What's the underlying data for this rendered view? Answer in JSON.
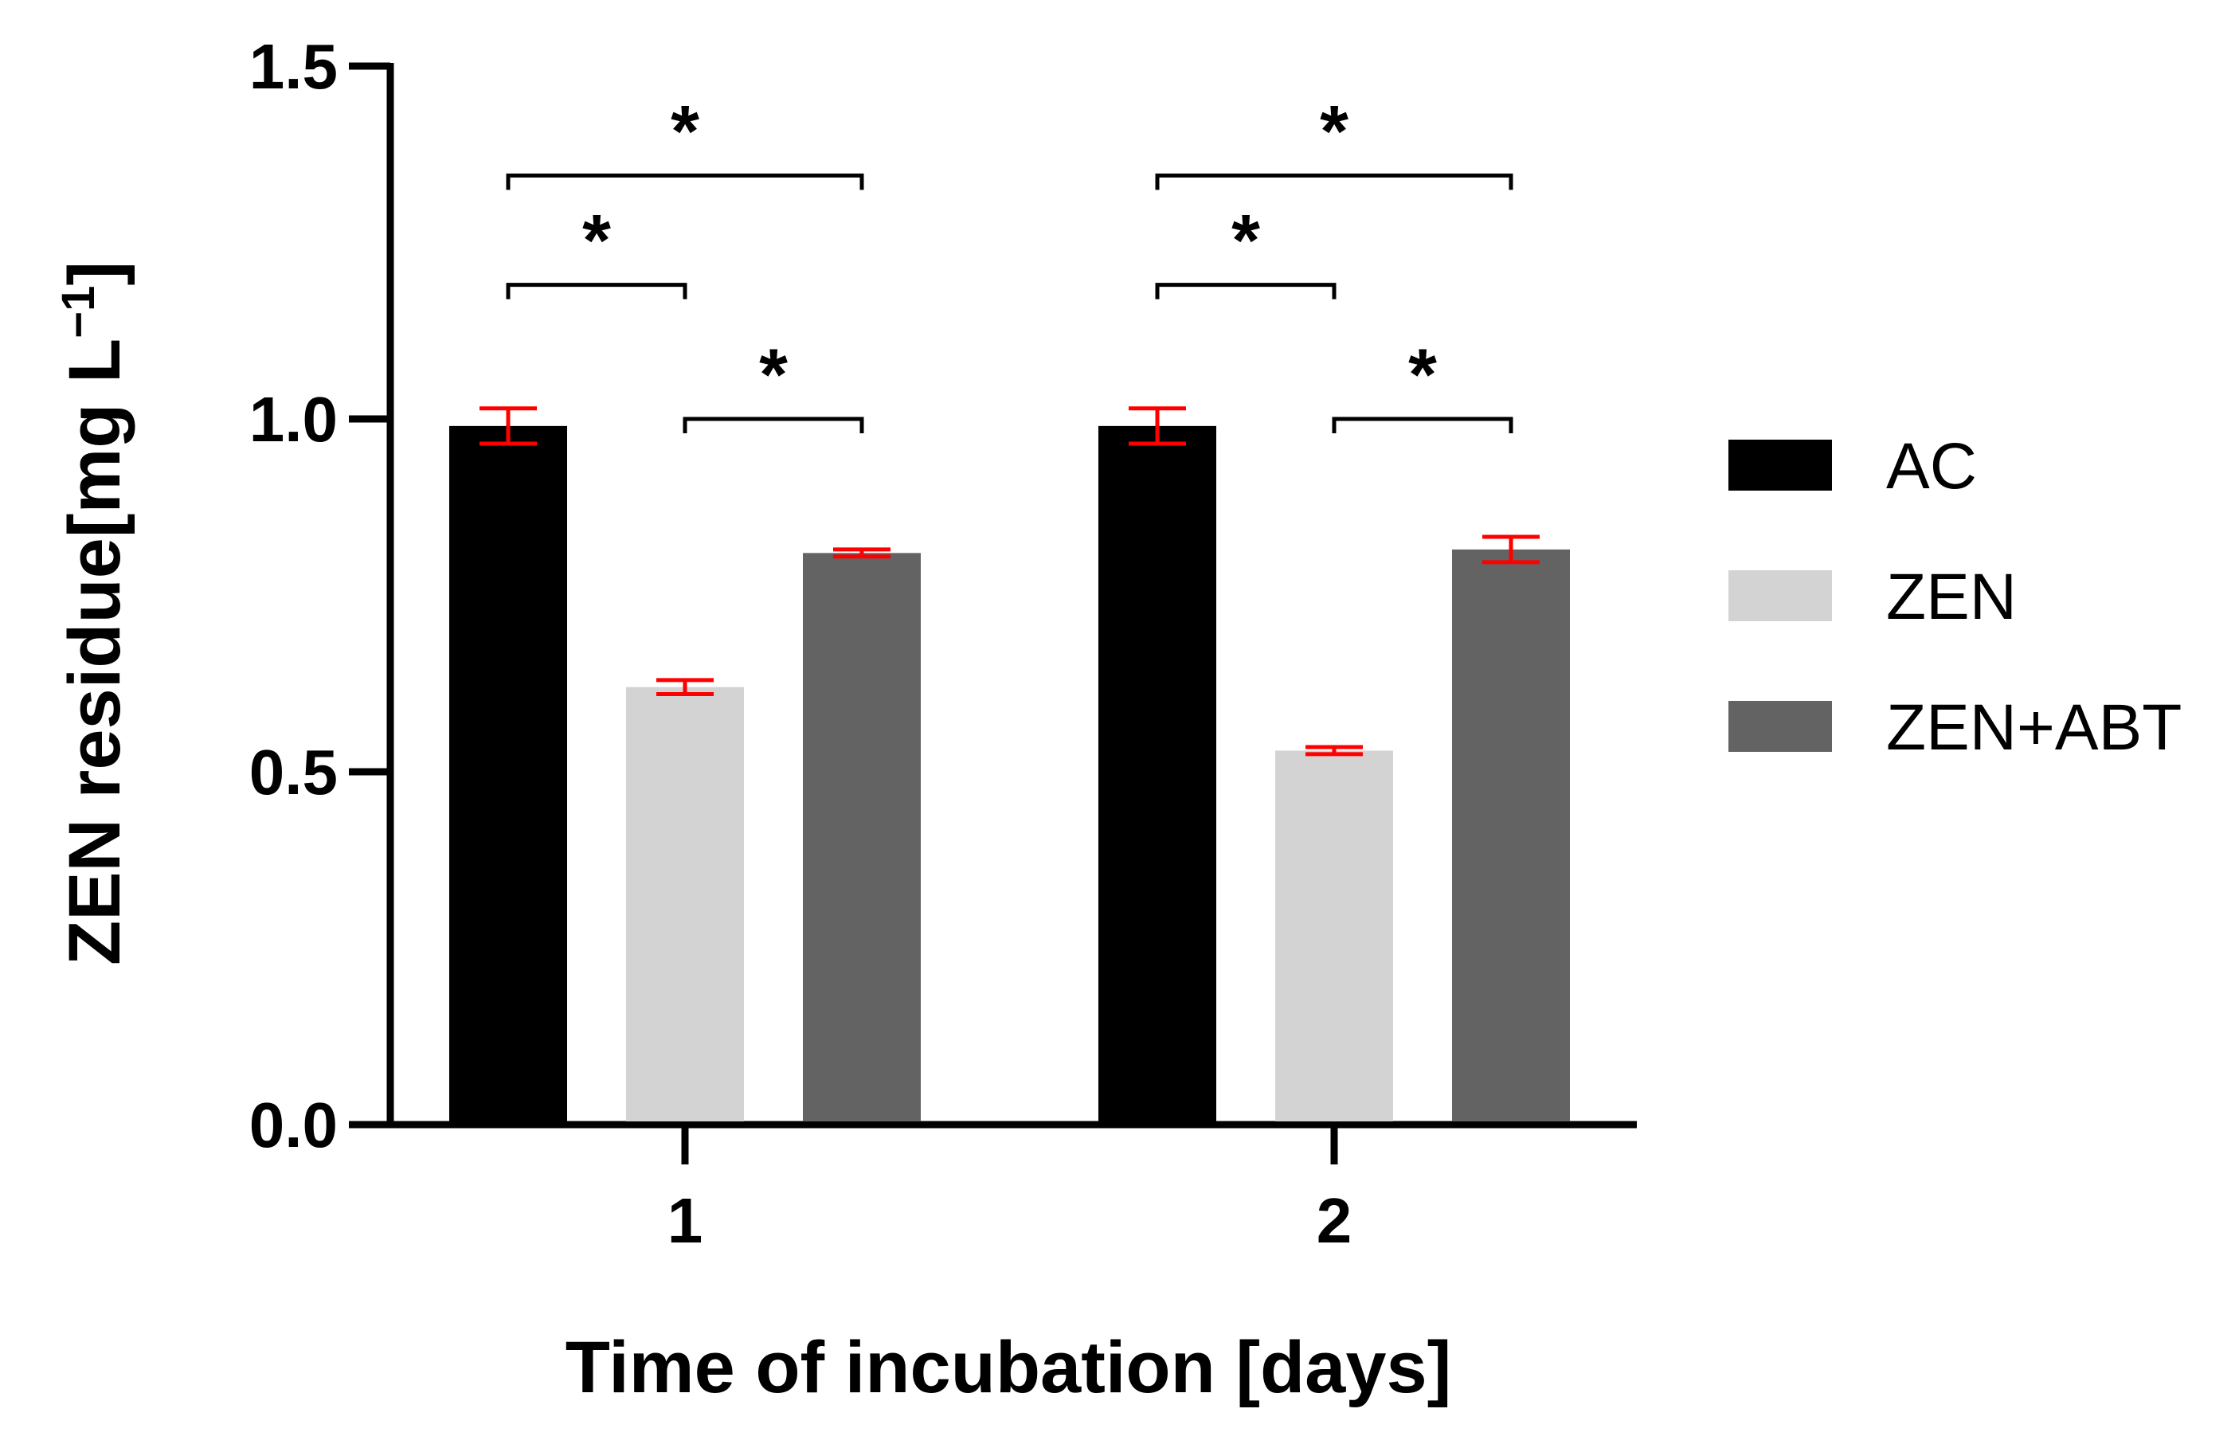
{
  "chart_data": {
    "type": "bar",
    "categories": [
      "1",
      "2"
    ],
    "series": [
      {
        "name": "AC",
        "color": "#000000",
        "values": [
          0.99,
          0.99
        ],
        "errors": [
          0.025,
          0.025
        ]
      },
      {
        "name": "ZEN",
        "color": "#d3d3d3",
        "values": [
          0.62,
          0.53
        ],
        "errors": [
          0.01,
          0.005
        ]
      },
      {
        "name": "ZEN+ABT",
        "color": "#636363",
        "values": [
          0.81,
          0.815
        ],
        "errors": [
          0.005,
          0.018
        ]
      }
    ],
    "error_bar_color": "#ff0000",
    "xlabel": "Time of incubation [days]",
    "ylabel": "ZEN residue[mg L",
    "ylabel_superscript": "−1",
    "ylabel_suffix": "]",
    "ylim": [
      0,
      1.5
    ],
    "yticks": [
      "0.0",
      "0.5",
      "1.0",
      "1.5"
    ],
    "grid": false,
    "legend_position": "right",
    "significance": [
      {
        "category": "1",
        "from_series": "AC",
        "to_series": "ZEN",
        "mark": "*",
        "y": 1.19
      },
      {
        "category": "1",
        "from_series": "AC",
        "to_series": "ZEN+ABT",
        "mark": "*",
        "y": 1.345
      },
      {
        "category": "1",
        "from_series": "ZEN",
        "to_series": "ZEN+ABT",
        "mark": "*",
        "y": 1.0
      },
      {
        "category": "2",
        "from_series": "AC",
        "to_series": "ZEN",
        "mark": "*",
        "y": 1.19
      },
      {
        "category": "2",
        "from_series": "AC",
        "to_series": "ZEN+ABT",
        "mark": "*",
        "y": 1.345
      },
      {
        "category": "2",
        "from_series": "ZEN",
        "to_series": "ZEN+ABT",
        "mark": "*",
        "y": 1.0
      }
    ]
  }
}
